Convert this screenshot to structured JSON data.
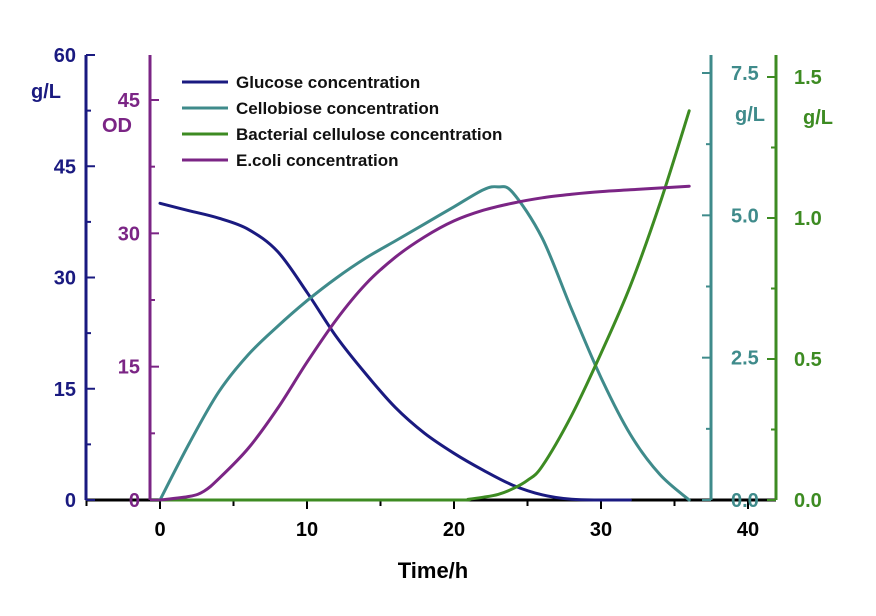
{
  "chart_data": {
    "type": "line",
    "xlabel": "Time/h",
    "xlim": [
      -5,
      42
    ],
    "xticks": [
      0,
      10,
      20,
      30,
      40
    ],
    "grid": false,
    "legend_position": "top-left",
    "axes": [
      {
        "id": "glucose",
        "side": "left-outer",
        "unit": "g/L",
        "ylim": [
          0,
          60
        ],
        "ticks": [
          "0",
          "15",
          "30",
          "45",
          "60"
        ],
        "color": "#1a1a80"
      },
      {
        "id": "od",
        "side": "left-inner",
        "unit": "OD",
        "ylim": [
          0,
          45
        ],
        "ticks": [
          "0",
          "15",
          "30",
          "45"
        ],
        "color": "#7b2585"
      },
      {
        "id": "cellobiose",
        "side": "right-inner",
        "unit": "g/L",
        "ylim": [
          0,
          7.5
        ],
        "ticks": [
          "0.0",
          "2.5",
          "5.0",
          "7.5"
        ],
        "color": "#3f8b8b"
      },
      {
        "id": "bc",
        "side": "right-outer",
        "unit": "g/L",
        "ylim": [
          0,
          1.5
        ],
        "ticks": [
          "0.0",
          "0.5",
          "1.0",
          "1.5"
        ],
        "color": "#3d8b22"
      }
    ],
    "series": [
      {
        "name": "Glucose concentration",
        "axis": "glucose",
        "color": "#1a1a80",
        "x": [
          0,
          2,
          4,
          6,
          8,
          10,
          12,
          14,
          16,
          18,
          20,
          22,
          24,
          26,
          28,
          30,
          32
        ],
        "y": [
          40,
          39,
          38,
          36.5,
          33.5,
          28,
          22,
          17,
          12.5,
          9,
          6.3,
          4,
          2,
          0.7,
          0.1,
          0,
          0
        ]
      },
      {
        "name": "Cellobiose concentration",
        "axis": "cellobiose",
        "color": "#3f8b8b",
        "x": [
          0,
          2,
          4,
          6,
          8,
          10,
          12,
          14,
          16,
          18,
          20,
          22,
          23,
          24,
          26,
          28,
          30,
          32,
          34,
          36
        ],
        "y": [
          0,
          1.0,
          1.9,
          2.55,
          3.05,
          3.5,
          3.9,
          4.25,
          4.55,
          4.85,
          5.15,
          5.45,
          5.5,
          5.4,
          4.6,
          3.35,
          2.15,
          1.15,
          0.45,
          0
        ]
      },
      {
        "name": "Bacterial cellulose concentration",
        "axis": "bc",
        "color": "#3d8b22",
        "x": [
          0,
          10,
          20,
          21,
          22,
          23,
          24,
          25,
          26,
          28,
          30,
          32,
          34,
          36
        ],
        "y": [
          0,
          0,
          0,
          0.003,
          0.01,
          0.02,
          0.04,
          0.07,
          0.12,
          0.3,
          0.52,
          0.76,
          1.05,
          1.38
        ]
      },
      {
        "name": "E.coli concentration",
        "axis": "od",
        "color": "#7b2585",
        "x": [
          0,
          2,
          3,
          4,
          6,
          8,
          10,
          12,
          14,
          16,
          18,
          20,
          22,
          24,
          26,
          28,
          30,
          32,
          34,
          36
        ],
        "y": [
          0,
          0.4,
          1,
          2.4,
          5.8,
          10.3,
          15.5,
          20.3,
          24.3,
          27.3,
          29.6,
          31.4,
          32.6,
          33.4,
          34,
          34.4,
          34.7,
          34.9,
          35.1,
          35.3
        ]
      }
    ]
  }
}
